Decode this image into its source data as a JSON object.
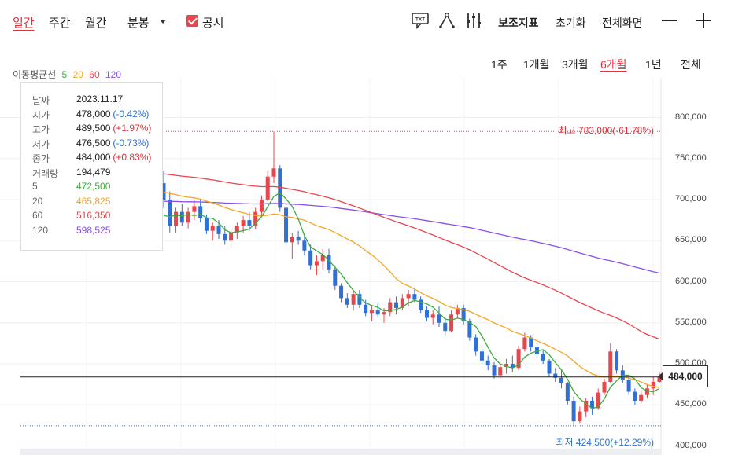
{
  "toolbar": {
    "tabs": [
      "일간",
      "주간",
      "월간",
      "분봉"
    ],
    "active_tab": "일간",
    "disclosure_label": "공시",
    "disclosure_checked": true,
    "indicator_label": "보조지표",
    "reset_label": "초기화",
    "fullscreen_label": "전체화면",
    "txt_icon_label": "TXT",
    "icons": [
      "txt-icon",
      "drawing-tool-icon",
      "indicator-settings-icon",
      "zoom-out-icon",
      "zoom-in-icon"
    ]
  },
  "periods": {
    "items": [
      "1주",
      "1개월",
      "3개월",
      "6개월",
      "1년",
      "전체"
    ],
    "active": "6개월"
  },
  "ma_legend": {
    "title": "이동평균선",
    "items": [
      {
        "label": "5",
        "color": "#3cac3c"
      },
      {
        "label": "20",
        "color": "#f5a623"
      },
      {
        "label": "60",
        "color": "#e8464c"
      },
      {
        "label": "120",
        "color": "#8a4fe8"
      }
    ]
  },
  "tooltip": {
    "rows": [
      {
        "label": "날짜",
        "value": "2023.11.17",
        "change": "",
        "color": "#222222"
      },
      {
        "label": "시가",
        "value": "478,000",
        "change": "(-0.42%)",
        "color": "#2f6fd6"
      },
      {
        "label": "고가",
        "value": "489,500",
        "change": "(+1.97%)",
        "color": "#e0303a"
      },
      {
        "label": "저가",
        "value": "476,500",
        "change": "(-0.73%)",
        "color": "#2f6fd6"
      },
      {
        "label": "종가",
        "value": "484,000",
        "change": "(+0.83%)",
        "color": "#e0303a"
      },
      {
        "label": "거래량",
        "value": "194,479",
        "change": "",
        "color": "#222222"
      },
      {
        "label": "5",
        "value": "472,500",
        "change": "",
        "color": "#3cac3c"
      },
      {
        "label": "20",
        "value": "465,825",
        "change": "",
        "color": "#f5a623"
      },
      {
        "label": "60",
        "value": "516,350",
        "change": "",
        "color": "#e8464c"
      },
      {
        "label": "120",
        "value": "598,525",
        "change": "",
        "color": "#8a4fe8"
      }
    ]
  },
  "current_price_label": "484,000",
  "high_label": "최고 783,000(-61.78%)",
  "low_label": "최저 424,500(+12.29%)",
  "colors": {
    "up": "#e8464c",
    "down": "#2f6fd6"
  },
  "chart_data": {
    "type": "candlestick",
    "ylim": [
      400000,
      800000
    ],
    "y_ticks": [
      400000,
      450000,
      500000,
      550000,
      600000,
      650000,
      700000,
      750000,
      800000
    ],
    "y_tick_labels": [
      "400,000",
      "450,000",
      "500,000",
      "550,000",
      "600,000",
      "650,000",
      "700,000",
      "750,000",
      "800,000"
    ],
    "period_high": 783000,
    "period_low": 424500,
    "last_close": 484000,
    "ohlc": [
      [
        720000,
        735000,
        690000,
        700000
      ],
      [
        700000,
        710000,
        660000,
        668000
      ],
      [
        668000,
        690000,
        660000,
        685000
      ],
      [
        685000,
        695000,
        668000,
        672000
      ],
      [
        672000,
        690000,
        665000,
        685000
      ],
      [
        685000,
        700000,
        675000,
        692000
      ],
      [
        692000,
        700000,
        672000,
        678000
      ],
      [
        678000,
        682000,
        658000,
        662000
      ],
      [
        662000,
        672000,
        650000,
        668000
      ],
      [
        668000,
        675000,
        652000,
        658000
      ],
      [
        658000,
        668000,
        645000,
        650000
      ],
      [
        650000,
        665000,
        642000,
        660000
      ],
      [
        660000,
        672000,
        652000,
        668000
      ],
      [
        668000,
        680000,
        660000,
        675000
      ],
      [
        675000,
        685000,
        662000,
        668000
      ],
      [
        668000,
        690000,
        664000,
        685000
      ],
      [
        685000,
        705000,
        680000,
        700000
      ],
      [
        700000,
        735000,
        698000,
        728000
      ],
      [
        728000,
        783000,
        720000,
        738000
      ],
      [
        738000,
        742000,
        685000,
        690000
      ],
      [
        690000,
        695000,
        640000,
        648000
      ],
      [
        648000,
        660000,
        628000,
        655000
      ],
      [
        655000,
        662000,
        645000,
        650000
      ],
      [
        650000,
        658000,
        632000,
        638000
      ],
      [
        638000,
        645000,
        615000,
        620000
      ],
      [
        620000,
        632000,
        608000,
        625000
      ],
      [
        625000,
        640000,
        615000,
        632000
      ],
      [
        632000,
        640000,
        610000,
        615000
      ],
      [
        615000,
        620000,
        590000,
        595000
      ],
      [
        595000,
        598000,
        575000,
        580000
      ],
      [
        580000,
        586000,
        568000,
        572000
      ],
      [
        572000,
        590000,
        565000,
        585000
      ],
      [
        585000,
        590000,
        568000,
        572000
      ],
      [
        572000,
        578000,
        558000,
        562000
      ],
      [
        562000,
        570000,
        552000,
        565000
      ],
      [
        565000,
        575000,
        556000,
        560000
      ],
      [
        560000,
        568000,
        550000,
        563000
      ],
      [
        563000,
        580000,
        558000,
        575000
      ],
      [
        575000,
        582000,
        560000,
        568000
      ],
      [
        568000,
        585000,
        565000,
        580000
      ],
      [
        580000,
        590000,
        570000,
        585000
      ],
      [
        585000,
        593000,
        575000,
        578000
      ],
      [
        578000,
        582000,
        562000,
        566000
      ],
      [
        566000,
        570000,
        552000,
        556000
      ],
      [
        556000,
        565000,
        548000,
        560000
      ],
      [
        560000,
        570000,
        545000,
        550000
      ],
      [
        550000,
        556000,
        535000,
        540000
      ],
      [
        540000,
        565000,
        538000,
        560000
      ],
      [
        560000,
        572000,
        555000,
        568000
      ],
      [
        568000,
        572000,
        548000,
        552000
      ],
      [
        552000,
        555000,
        528000,
        532000
      ],
      [
        532000,
        536000,
        510000,
        515000
      ],
      [
        515000,
        520000,
        500000,
        504000
      ],
      [
        504000,
        510000,
        492000,
        498000
      ],
      [
        498000,
        502000,
        482000,
        486000
      ],
      [
        486000,
        500000,
        482000,
        496000
      ],
      [
        496000,
        506000,
        488000,
        500000
      ],
      [
        500000,
        510000,
        490000,
        495000
      ],
      [
        495000,
        522000,
        492000,
        518000
      ],
      [
        518000,
        538000,
        515000,
        532000
      ],
      [
        532000,
        535000,
        515000,
        520000
      ],
      [
        520000,
        525000,
        508000,
        512000
      ],
      [
        512000,
        516000,
        500000,
        504000
      ],
      [
        504000,
        506000,
        484000,
        488000
      ],
      [
        488000,
        495000,
        478000,
        483000
      ],
      [
        483000,
        492000,
        470000,
        476000
      ],
      [
        476000,
        478000,
        450000,
        455000
      ],
      [
        455000,
        460000,
        424500,
        430000
      ],
      [
        430000,
        448000,
        428000,
        442000
      ],
      [
        442000,
        458000,
        435000,
        455000
      ],
      [
        455000,
        460000,
        438000,
        446000
      ],
      [
        446000,
        470000,
        444000,
        465000
      ],
      [
        465000,
        482000,
        462000,
        478000
      ],
      [
        478000,
        525000,
        476000,
        515000
      ],
      [
        515000,
        518000,
        488000,
        492000
      ],
      [
        492000,
        498000,
        476000,
        480000
      ],
      [
        480000,
        485000,
        462000,
        466000
      ],
      [
        466000,
        470000,
        450000,
        455000
      ],
      [
        455000,
        468000,
        452000,
        462000
      ],
      [
        462000,
        475000,
        458000,
        470000
      ],
      [
        470000,
        484000,
        462000,
        478000
      ],
      [
        478000,
        489500,
        476500,
        484000
      ]
    ],
    "ma5_start": 676000,
    "ma20_start": 710000,
    "ma60_start": 732000,
    "ma120_start": 698000
  }
}
